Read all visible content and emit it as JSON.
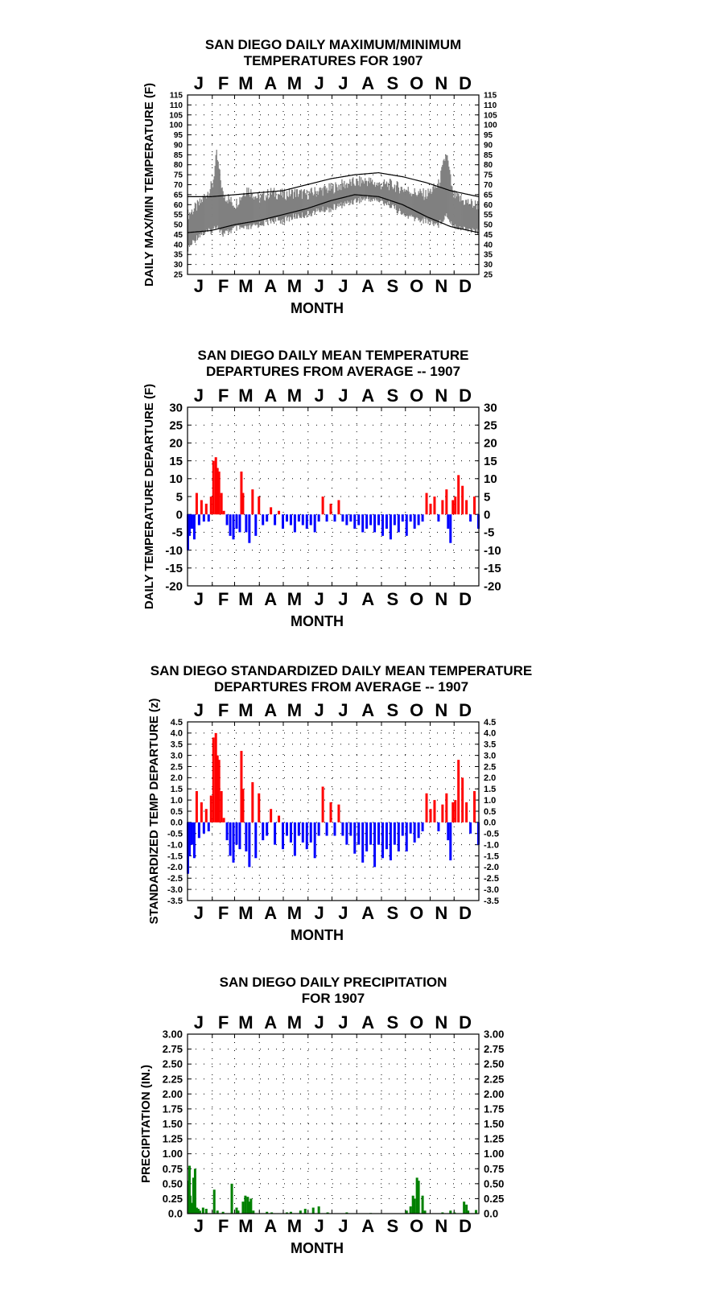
{
  "chart_data": [
    {
      "type": "line",
      "title": [
        "SAN DIEGO DAILY MAXIMUM/MINIMUM",
        "TEMPERATURES FOR 1907"
      ],
      "xlabel": "MONTH",
      "ylabel": "DAILY MAX/MIN TEMPERATURE (F)",
      "months": [
        "J",
        "F",
        "M",
        "A",
        "M",
        "J",
        "J",
        "A",
        "S",
        "O",
        "N",
        "D"
      ],
      "ylim": [
        25,
        115
      ],
      "yticks": [
        "115",
        "110",
        "105",
        "100",
        "95",
        "90",
        "85",
        "80",
        "75",
        "70",
        "65",
        "60",
        "55",
        "50",
        "45",
        "40",
        "35",
        "30",
        "25"
      ],
      "grid": true,
      "series": [
        {
          "role": "daily-range",
          "color": "#808080",
          "x_day": [
            1,
            15,
            32,
            37,
            45,
            60,
            75,
            90,
            105,
            120,
            135,
            150,
            165,
            180,
            195,
            210,
            225,
            240,
            255,
            270,
            285,
            300,
            315,
            325,
            333,
            345,
            360,
            365
          ],
          "max": [
            55,
            60,
            70,
            85,
            65,
            60,
            68,
            63,
            66,
            65,
            66,
            65,
            67,
            68,
            70,
            71,
            72,
            70,
            70,
            68,
            66,
            65,
            70,
            86,
            65,
            62,
            60,
            60
          ],
          "min": [
            38,
            45,
            47,
            50,
            45,
            48,
            48,
            50,
            52,
            52,
            54,
            55,
            57,
            58,
            60,
            62,
            63,
            62,
            60,
            55,
            53,
            52,
            50,
            55,
            50,
            48,
            47,
            46
          ]
        },
        {
          "role": "normal-max",
          "color": "#000000",
          "x_day": [
            1,
            30,
            60,
            90,
            120,
            150,
            180,
            210,
            240,
            270,
            300,
            330,
            365
          ],
          "values": [
            64,
            64,
            65,
            66,
            67,
            70,
            73,
            75,
            76,
            74,
            71,
            67,
            64
          ]
        },
        {
          "role": "normal-min",
          "color": "#000000",
          "x_day": [
            1,
            30,
            60,
            90,
            120,
            150,
            180,
            210,
            240,
            270,
            300,
            330,
            365
          ],
          "values": [
            46,
            47,
            50,
            52,
            55,
            58,
            62,
            65,
            64,
            60,
            54,
            49,
            46
          ]
        }
      ]
    },
    {
      "type": "bar",
      "title": [
        "SAN DIEGO DAILY MEAN TEMPERATURE",
        "DEPARTURES FROM AVERAGE -- 1907"
      ],
      "xlabel": "MONTH",
      "ylabel": "DAILY TEMPERATURE DEPARTURE (F)",
      "months": [
        "J",
        "F",
        "M",
        "A",
        "M",
        "J",
        "J",
        "A",
        "S",
        "O",
        "N",
        "D"
      ],
      "ylim": [
        -20,
        30
      ],
      "yticks": [
        "30",
        "25",
        "20",
        "15",
        "10",
        "5",
        "0",
        "-5",
        "-10",
        "-15",
        "-20"
      ],
      "grid": true,
      "positive_color": "#ff0000",
      "negative_color": "#0000ff",
      "x_day": [
        1,
        3,
        6,
        9,
        12,
        15,
        18,
        21,
        24,
        27,
        30,
        33,
        36,
        38,
        40,
        43,
        46,
        50,
        54,
        58,
        62,
        66,
        68,
        70,
        74,
        78,
        82,
        86,
        90,
        95,
        100,
        105,
        110,
        115,
        120,
        125,
        130,
        135,
        140,
        145,
        150,
        155,
        160,
        165,
        170,
        175,
        180,
        185,
        190,
        195,
        200,
        205,
        210,
        215,
        220,
        225,
        230,
        235,
        240,
        245,
        250,
        255,
        260,
        265,
        270,
        275,
        280,
        285,
        290,
        295,
        300,
        305,
        310,
        315,
        320,
        325,
        327,
        330,
        333,
        336,
        340,
        345,
        350,
        355,
        360,
        365
      ],
      "values": [
        -10,
        -6,
        -4,
        -7,
        6,
        -3,
        4,
        -2,
        3,
        -2,
        5,
        15,
        16,
        13,
        12,
        6,
        1,
        -3,
        -6,
        -7,
        -4,
        -5,
        12,
        6,
        -5,
        -8,
        7,
        -6,
        5,
        -3,
        -2,
        2,
        -3,
        1,
        -4,
        -2,
        -3,
        -5,
        -2,
        -3,
        -4,
        -3,
        -5,
        -2,
        5,
        -2,
        3,
        -2,
        4,
        -2,
        -3,
        -2,
        -4,
        -3,
        -5,
        -4,
        -3,
        -5,
        -3,
        -6,
        -4,
        -7,
        -3,
        -5,
        -2,
        -6,
        -2,
        -4,
        -3,
        -2,
        6,
        3,
        5,
        -2,
        4,
        7,
        -4,
        -8,
        4,
        5,
        11,
        8,
        4,
        -2,
        5,
        -4
      ]
    },
    {
      "type": "bar",
      "title": [
        "SAN DIEGO STANDARDIZED DAILY MEAN TEMPERATURE",
        "DEPARTURES FROM AVERAGE -- 1907"
      ],
      "xlabel": "MONTH",
      "ylabel": "STANDARDIZED TEMP DEPARTURE (z)",
      "months": [
        "J",
        "F",
        "M",
        "A",
        "M",
        "J",
        "J",
        "A",
        "S",
        "O",
        "N",
        "D"
      ],
      "ylim": [
        -3.5,
        4.5
      ],
      "yticks": [
        "4.5",
        "4.0",
        "3.5",
        "3.0",
        "2.5",
        "2.0",
        "1.5",
        "1.0",
        "0.5",
        "0.0",
        "-0.5",
        "-1.0",
        "-1.5",
        "-2.0",
        "-2.5",
        "-3.0",
        "-3.5"
      ],
      "grid": true,
      "positive_color": "#ff0000",
      "negative_color": "#0000ff",
      "x_day": [
        1,
        3,
        6,
        9,
        12,
        15,
        18,
        21,
        24,
        27,
        30,
        33,
        36,
        38,
        40,
        43,
        46,
        50,
        54,
        58,
        62,
        66,
        68,
        70,
        74,
        78,
        82,
        86,
        90,
        95,
        100,
        105,
        110,
        115,
        120,
        125,
        130,
        135,
        140,
        145,
        150,
        155,
        160,
        165,
        170,
        175,
        180,
        185,
        190,
        195,
        200,
        205,
        210,
        215,
        220,
        225,
        230,
        235,
        240,
        245,
        250,
        255,
        260,
        265,
        270,
        275,
        280,
        285,
        290,
        295,
        300,
        305,
        310,
        315,
        320,
        325,
        327,
        330,
        333,
        336,
        340,
        345,
        350,
        355,
        360,
        365
      ],
      "values": [
        -2.3,
        -1.5,
        -1,
        -1.6,
        1.4,
        -0.7,
        0.9,
        -0.5,
        0.6,
        -0.4,
        1.2,
        3.8,
        4.0,
        3.0,
        2.8,
        1.4,
        0.2,
        -0.8,
        -1.5,
        -1.8,
        -1,
        -1.2,
        3.2,
        1.5,
        -1.3,
        -2.0,
        1.8,
        -1.6,
        1.3,
        -0.8,
        -0.6,
        0.6,
        -1.0,
        0.3,
        -1.2,
        -0.6,
        -0.9,
        -1.5,
        -0.6,
        -0.9,
        -1.2,
        -0.9,
        -1.6,
        -0.6,
        1.6,
        -0.6,
        0.9,
        -0.6,
        0.8,
        -0.6,
        -1.0,
        -0.6,
        -1.4,
        -1.0,
        -1.8,
        -1.3,
        -1.0,
        -2.0,
        -1.0,
        -1.6,
        -1.2,
        -1.7,
        -1.0,
        -1.3,
        -0.6,
        -1.3,
        -0.5,
        -0.9,
        -0.7,
        -0.4,
        1.3,
        0.6,
        1.0,
        -0.4,
        0.8,
        1.3,
        -0.8,
        -1.7,
        0.9,
        1.0,
        2.8,
        2.0,
        0.9,
        -0.5,
        1.4,
        -1.0
      ]
    },
    {
      "type": "bar",
      "title": [
        "SAN DIEGO DAILY PRECIPITATION",
        "FOR 1907"
      ],
      "xlabel": "MONTH",
      "ylabel": "PRECIPITATION (IN.)",
      "months": [
        "J",
        "F",
        "M",
        "A",
        "M",
        "J",
        "J",
        "A",
        "S",
        "O",
        "N",
        "D"
      ],
      "ylim": [
        0,
        3
      ],
      "yticks": [
        "3.00",
        "2.75",
        "2.50",
        "2.25",
        "2.00",
        "1.75",
        "1.50",
        "1.25",
        "1.00",
        "0.75",
        "0.50",
        "0.25",
        "0.0"
      ],
      "grid": true,
      "color": "#008000",
      "x_day": [
        2,
        3,
        4,
        6,
        8,
        10,
        12,
        14,
        16,
        20,
        24,
        34,
        38,
        45,
        56,
        62,
        64,
        70,
        73,
        76,
        78,
        80,
        83,
        100,
        106,
        125,
        130,
        142,
        148,
        158,
        165,
        176,
        200,
        230,
        275,
        280,
        283,
        285,
        288,
        290,
        295,
        298,
        320,
        330,
        335,
        347,
        350,
        352,
        362
      ],
      "values": [
        0.55,
        0.8,
        0.3,
        0.18,
        0.6,
        0.75,
        0.1,
        0.08,
        0.05,
        0.1,
        0.08,
        0.4,
        0.05,
        0.03,
        0.5,
        0.1,
        0.05,
        0.2,
        0.3,
        0.28,
        0.2,
        0.25,
        0.05,
        0.03,
        0.02,
        0.02,
        0.03,
        0.05,
        0.08,
        0.1,
        0.12,
        0.02,
        0.02,
        0.01,
        0.05,
        0.12,
        0.3,
        0.25,
        0.6,
        0.55,
        0.3,
        0.05,
        0.02,
        0.05,
        0.02,
        0.2,
        0.15,
        0.05,
        0.06
      ]
    }
  ]
}
